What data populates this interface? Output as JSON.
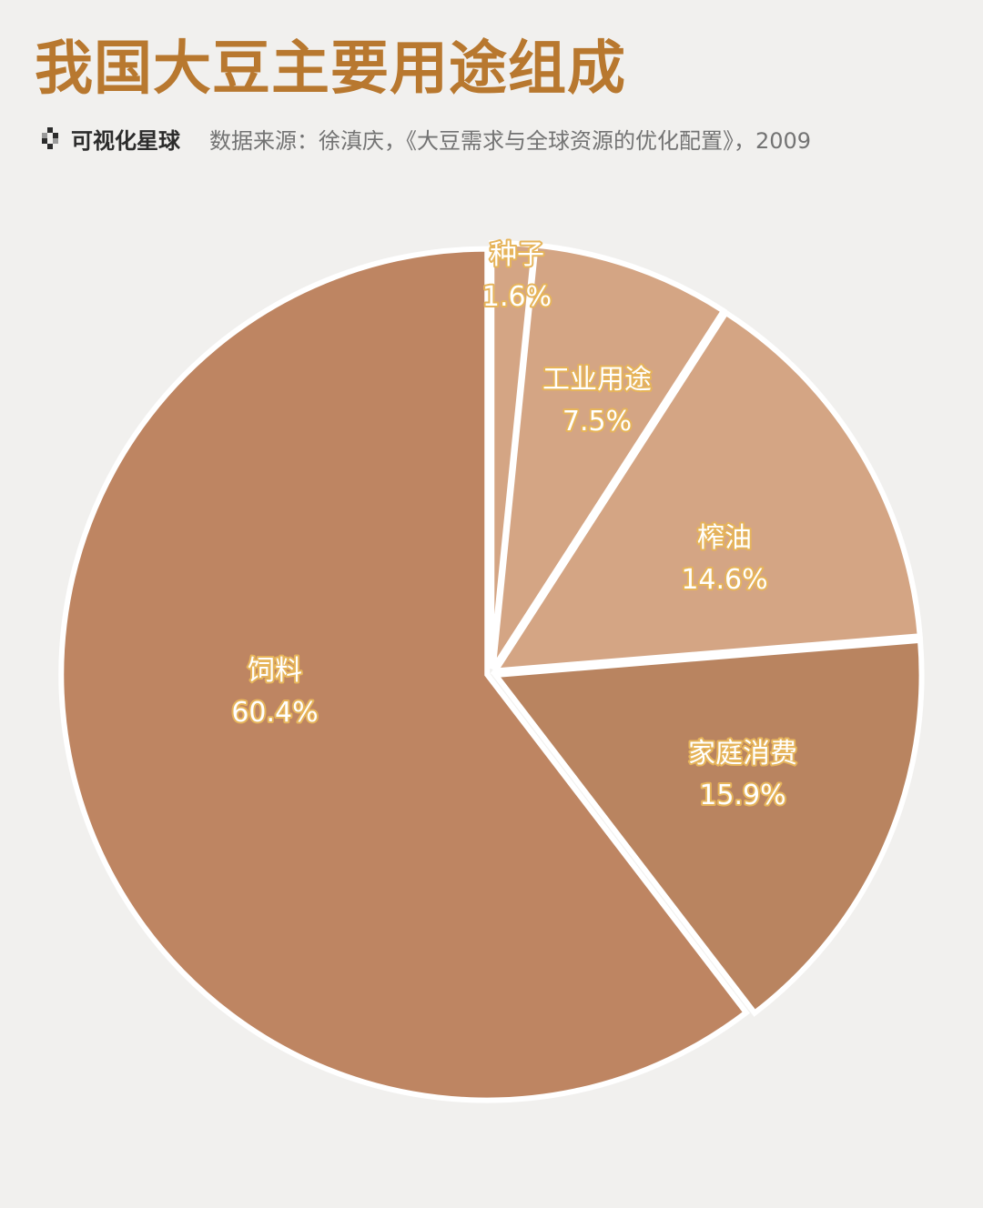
{
  "title": "我国大豆主要用途组成",
  "brand": "可视化星球",
  "brand_icon": "pixel-diamond-icon",
  "source": "数据来源：徐滇庆，《大豆需求与全球资源的优化配置》，2009",
  "colors": {
    "background": "#f1f0ee",
    "title": "#b8782f",
    "label_fill": "#ffffff",
    "label_outline": "#e6b45a"
  },
  "chart_data": {
    "type": "pie",
    "title": "我国大豆主要用途组成",
    "start": "12 o'clock, clockwise",
    "slices": [
      {
        "label": "种子",
        "value": 1.6,
        "display": "1.6%",
        "color": "#d4a584"
      },
      {
        "label": "工业用途",
        "value": 7.5,
        "display": "7.5%",
        "color": "#d4a584"
      },
      {
        "label": "榨油",
        "value": 14.6,
        "display": "14.6%",
        "color": "#d4a584"
      },
      {
        "label": "家庭消费",
        "value": 15.9,
        "display": "15.9%",
        "color": "#b98460"
      },
      {
        "label": "饲料",
        "value": 60.4,
        "display": "60.4%",
        "color": "#be8562"
      }
    ]
  }
}
